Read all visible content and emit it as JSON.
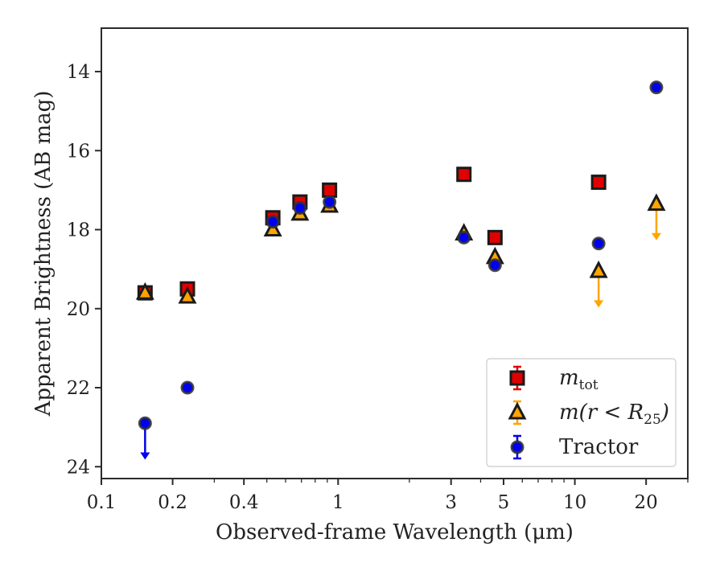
{
  "chart_data": {
    "type": "scatter",
    "xlabel": "Observed-frame Wavelength (μm)",
    "ylabel": "Apparent Brightness (AB mag)",
    "x_scale": "log",
    "y_inverted": true,
    "xlim": [
      0.1,
      30
    ],
    "ylim": [
      24.3,
      12.9
    ],
    "grid": false,
    "legend_position": "lower right",
    "x_ticks": [
      {
        "value": 0.1,
        "label": "0.1"
      },
      {
        "value": 0.2,
        "label": "0.2"
      },
      {
        "value": 0.4,
        "label": "0.4"
      },
      {
        "value": 1,
        "label": "1"
      },
      {
        "value": 3,
        "label": "3"
      },
      {
        "value": 5,
        "label": "5"
      },
      {
        "value": 10,
        "label": "10"
      },
      {
        "value": 20,
        "label": "20"
      }
    ],
    "y_ticks": [
      {
        "value": 14,
        "label": "14"
      },
      {
        "value": 16,
        "label": "16"
      },
      {
        "value": 18,
        "label": "18"
      },
      {
        "value": 20,
        "label": "20"
      },
      {
        "value": 22,
        "label": "22"
      },
      {
        "value": 24,
        "label": "24"
      }
    ],
    "series": [
      {
        "name": "m_tot",
        "legend_main": "m",
        "legend_sub": "tot",
        "marker": "square",
        "color": "#e00000",
        "edge": "#1a1a1a",
        "points": [
          {
            "x": 0.153,
            "y": 19.6
          },
          {
            "x": 0.231,
            "y": 19.5
          },
          {
            "x": 0.53,
            "y": 17.7
          },
          {
            "x": 0.69,
            "y": 17.3
          },
          {
            "x": 0.92,
            "y": 17.0
          },
          {
            "x": 3.4,
            "y": 16.6
          },
          {
            "x": 4.6,
            "y": 18.2
          },
          {
            "x": 12.6,
            "y": 16.8
          }
        ]
      },
      {
        "name": "m(r < R_25)",
        "legend_main": "m(r < R",
        "legend_sub": "25",
        "legend_tail": ")",
        "marker": "triangle",
        "color": "#ffa500",
        "edge": "#1a1a1a",
        "points": [
          {
            "x": 0.153,
            "y": 19.6
          },
          {
            "x": 0.231,
            "y": 19.7
          },
          {
            "x": 0.53,
            "y": 18.0
          },
          {
            "x": 0.69,
            "y": 17.6
          },
          {
            "x": 0.92,
            "y": 17.4
          },
          {
            "x": 3.4,
            "y": 18.1
          },
          {
            "x": 4.6,
            "y": 18.7
          },
          {
            "x": 12.6,
            "y": 19.05,
            "upper_limit": true,
            "arrow_to": 19.95
          },
          {
            "x": 22.1,
            "y": 17.35,
            "upper_limit": true,
            "arrow_to": 18.25
          }
        ]
      },
      {
        "name": "Tractor",
        "legend_main": "Tractor",
        "marker": "circle",
        "color": "#0000ee",
        "edge": "#333333",
        "points": [
          {
            "x": 0.153,
            "y": 22.9,
            "upper_limit": true,
            "arrow_to": 23.8
          },
          {
            "x": 0.231,
            "y": 22.0
          },
          {
            "x": 0.53,
            "y": 17.8
          },
          {
            "x": 0.69,
            "y": 17.45
          },
          {
            "x": 0.92,
            "y": 17.3
          },
          {
            "x": 3.4,
            "y": 18.2
          },
          {
            "x": 4.6,
            "y": 18.9
          },
          {
            "x": 12.6,
            "y": 18.35
          },
          {
            "x": 22.1,
            "y": 14.4
          }
        ]
      }
    ]
  }
}
